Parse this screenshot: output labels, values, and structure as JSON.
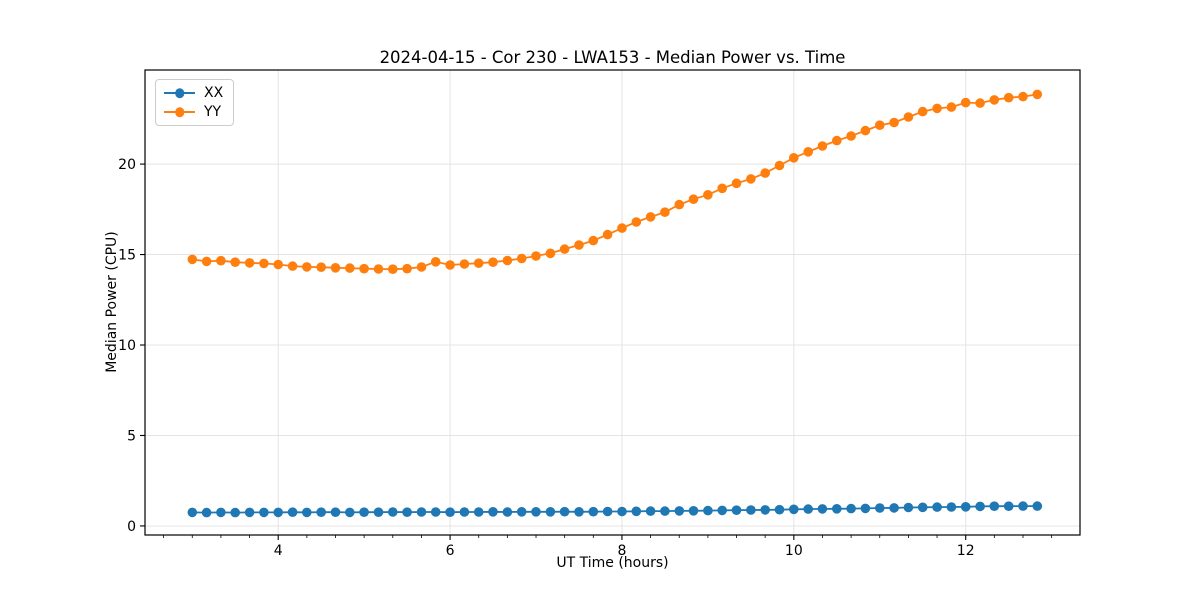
{
  "figure": {
    "title": "2024-04-15 - Cor 230 - LWA153 - Median Power vs. Time",
    "xlabel": "UT Time (hours)",
    "ylabel": "Median Power (CPU)"
  },
  "chart_data": {
    "type": "line",
    "title": "2024-04-15 - Cor 230 - LWA153 - Median Power vs. Time",
    "xlabel": "UT Time (hours)",
    "ylabel": "Median Power (CPU)",
    "xlim": [
      2.45,
      13.33
    ],
    "ylim": [
      -0.5,
      25.2
    ],
    "xticks": [
      4,
      6,
      8,
      10,
      12
    ],
    "yticks": [
      0,
      5,
      10,
      15,
      20
    ],
    "minor_xtick_step": 0.33333,
    "grid": true,
    "grid_color": "#e4e4e4",
    "legend_position": "upper left",
    "marker": "o",
    "x": [
      3.0,
      3.167,
      3.333,
      3.5,
      3.667,
      3.833,
      4.0,
      4.167,
      4.333,
      4.5,
      4.667,
      4.833,
      5.0,
      5.167,
      5.333,
      5.5,
      5.667,
      5.833,
      6.0,
      6.167,
      6.333,
      6.5,
      6.667,
      6.833,
      7.0,
      7.167,
      7.333,
      7.5,
      7.667,
      7.833,
      8.0,
      8.167,
      8.333,
      8.5,
      8.667,
      8.833,
      9.0,
      9.167,
      9.333,
      9.5,
      9.667,
      9.833,
      10.0,
      10.167,
      10.333,
      10.5,
      10.667,
      10.833,
      11.0,
      11.167,
      11.333,
      11.5,
      11.667,
      11.833,
      12.0,
      12.167,
      12.333,
      12.5,
      12.667,
      12.833
    ],
    "series": [
      {
        "name": "XX",
        "color": "#1f77b4",
        "values": [
          0.75,
          0.74,
          0.75,
          0.74,
          0.75,
          0.75,
          0.75,
          0.76,
          0.75,
          0.76,
          0.76,
          0.75,
          0.76,
          0.76,
          0.77,
          0.76,
          0.77,
          0.77,
          0.76,
          0.77,
          0.77,
          0.78,
          0.77,
          0.78,
          0.78,
          0.78,
          0.79,
          0.78,
          0.79,
          0.8,
          0.8,
          0.81,
          0.82,
          0.82,
          0.83,
          0.84,
          0.85,
          0.86,
          0.87,
          0.88,
          0.89,
          0.9,
          0.92,
          0.93,
          0.94,
          0.95,
          0.96,
          0.97,
          0.99,
          1.0,
          1.02,
          1.03,
          1.04,
          1.05,
          1.06,
          1.08,
          1.09,
          1.09,
          1.1,
          1.1
        ]
      },
      {
        "name": "YY",
        "color": "#ff7f0e",
        "values": [
          14.73,
          14.62,
          14.66,
          14.58,
          14.54,
          14.51,
          14.45,
          14.36,
          14.32,
          14.3,
          14.27,
          14.25,
          14.22,
          14.2,
          14.19,
          14.22,
          14.31,
          14.6,
          14.42,
          14.48,
          14.52,
          14.58,
          14.67,
          14.78,
          14.92,
          15.07,
          15.3,
          15.53,
          15.77,
          16.1,
          16.46,
          16.8,
          17.08,
          17.34,
          17.76,
          18.06,
          18.3,
          18.66,
          18.94,
          19.18,
          19.5,
          19.92,
          20.35,
          20.68,
          21.0,
          21.3,
          21.55,
          21.85,
          22.15,
          22.3,
          22.6,
          22.9,
          23.08,
          23.15,
          23.4,
          23.37,
          23.55,
          23.67,
          23.73,
          23.85
        ]
      }
    ]
  }
}
